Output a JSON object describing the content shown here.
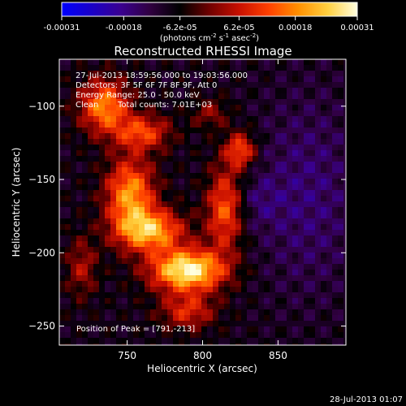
{
  "colorbar": {
    "ticks": [
      "-0.00031",
      "-0.00018",
      "-6.2e-05",
      "6.2e-05",
      "0.00018",
      "0.00031"
    ],
    "tick_values": [
      -0.00031,
      -0.00018,
      -6.2e-05,
      6.2e-05,
      0.00018,
      0.00031
    ],
    "range": [
      -0.00031,
      0.00031
    ],
    "units_pre": "(photons cm",
    "units_sup1": "-2",
    "units_mid": " s",
    "units_sup2": "-1",
    "units_post": " asec",
    "units_sup3": "-2",
    "units_close": ")",
    "colors": [
      "#0000ff",
      "#1a00c8",
      "#3a0090",
      "#300040",
      "#000000",
      "#700000",
      "#c81000",
      "#ff4000",
      "#ff9000",
      "#ffd040",
      "#ffffe0"
    ]
  },
  "annotations": {
    "line1": "27-Jul-2013 18:59:56.000 to 19:03:56.000",
    "line2": "Detectors: 3F 5F 6F 7F 8F 9F, Att 0",
    "line3": "Energy Range: 25.0 - 50.0 keV",
    "line4a": "Clean",
    "line4b": "Total counts: 7.01E+03",
    "peak": "Position of Peak = [791,-213]"
  },
  "footer": {
    "timestamp": "28-Jul-2013 01:07"
  },
  "chart_data": {
    "type": "heatmap",
    "title": "Reconstructed RHESSI Image",
    "xlabel": "Heliocentric X (arcsec)",
    "ylabel": "Heliocentric Y (arcsec)",
    "xlim": [
      705,
      895
    ],
    "ylim": [
      -263,
      -68
    ],
    "x_ticks": [
      750,
      800,
      850
    ],
    "x_tick_labels": [
      "750",
      "800",
      "850"
    ],
    "y_ticks": [
      -100,
      -150,
      -200,
      -250
    ],
    "y_tick_labels": [
      "−100",
      "−150",
      "−200",
      "−250"
    ],
    "peak": [
      791,
      -213
    ],
    "color_range": [
      -0.00031,
      0.00031
    ]
  }
}
